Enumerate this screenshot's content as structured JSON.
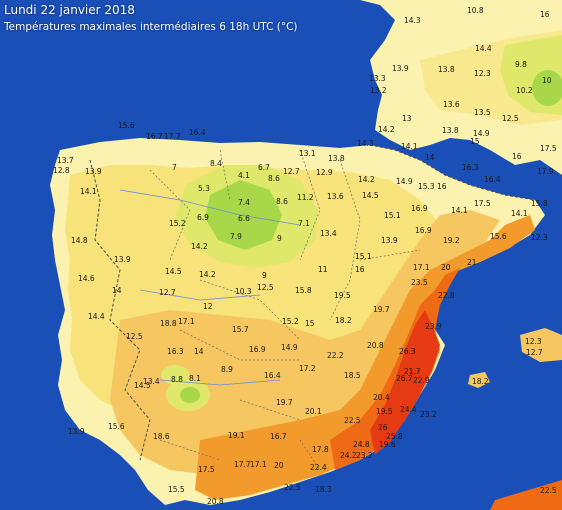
{
  "header": {
    "title": "Lundi 22 janvier 2018",
    "subtitle": "Températures maximales intermédiaires 6 18h UTC (°C)"
  },
  "colors": {
    "sea": "#1a4fb8",
    "yellow_pale": "#fbf2b0",
    "yellow": "#f8e27a",
    "light_orange": "#f6c760",
    "orange": "#f39a2c",
    "deep_orange": "#ee6a14",
    "red": "#e63a12",
    "lime": "#dfe86a",
    "green": "#a8d84a",
    "france_yellow": "#f9e98e"
  },
  "stations": [
    {
      "label": "10.8"
    },
    {
      "label": "16"
    },
    {
      "label": "14.3"
    },
    {
      "label": "14.4"
    },
    {
      "label": "9.8"
    },
    {
      "label": "13.3"
    },
    {
      "label": "13.9"
    },
    {
      "label": "13.8"
    },
    {
      "label": "12.3"
    },
    {
      "label": "10.2"
    },
    {
      "label": "13.2"
    },
    {
      "label": "10"
    },
    {
      "label": "13.6"
    },
    {
      "label": "13.5"
    },
    {
      "label": "13"
    },
    {
      "label": "12.5"
    },
    {
      "label": "15.6"
    },
    {
      "label": "14.2"
    },
    {
      "label": "13.8"
    },
    {
      "label": "14.9"
    },
    {
      "label": "15"
    },
    {
      "label": "16.7"
    },
    {
      "label": "17.7"
    },
    {
      "label": "16.4"
    },
    {
      "label": "14.3"
    },
    {
      "label": "14.1"
    },
    {
      "label": "14"
    },
    {
      "label": "16.3"
    },
    {
      "label": "16"
    },
    {
      "label": "17.5"
    },
    {
      "label": "13.7"
    },
    {
      "label": "7"
    },
    {
      "label": "8.4"
    },
    {
      "label": "6.7"
    },
    {
      "label": "12.7"
    },
    {
      "label": "13.1"
    },
    {
      "label": "13.8"
    },
    {
      "label": "14.2"
    },
    {
      "label": "14.9"
    },
    {
      "label": "15.3"
    },
    {
      "label": "16"
    },
    {
      "label": "16.4"
    },
    {
      "label": "17.9"
    },
    {
      "label": "12.8"
    },
    {
      "label": "13.9"
    },
    {
      "label": "4.1"
    },
    {
      "label": "8.6"
    },
    {
      "label": "12.9"
    },
    {
      "label": "16.9"
    },
    {
      "label": "14.1"
    },
    {
      "label": "17.5"
    },
    {
      "label": "14.1"
    },
    {
      "label": "5.3"
    },
    {
      "label": "7.4"
    },
    {
      "label": "8.6"
    },
    {
      "label": "11.2"
    },
    {
      "label": "13.6"
    },
    {
      "label": "14.5"
    },
    {
      "label": "15.1"
    },
    {
      "label": "14.1"
    },
    {
      "label": "15.8"
    },
    {
      "label": "6.9"
    },
    {
      "label": "6.6"
    },
    {
      "label": "7.1"
    },
    {
      "label": "14.8"
    },
    {
      "label": "15.2"
    },
    {
      "label": "13.4"
    },
    {
      "label": "16.9"
    },
    {
      "label": "19.2"
    },
    {
      "label": "15.6"
    },
    {
      "label": "14.2"
    },
    {
      "label": "7.9"
    },
    {
      "label": "9"
    },
    {
      "label": "13.9"
    },
    {
      "label": "12.3"
    },
    {
      "label": "21"
    },
    {
      "label": "13.9"
    },
    {
      "label": "14.5"
    },
    {
      "label": "14.2"
    },
    {
      "label": "9"
    },
    {
      "label": "11"
    },
    {
      "label": "15.1"
    },
    {
      "label": "16"
    },
    {
      "label": "17.1"
    },
    {
      "label": "20"
    },
    {
      "label": "14.6"
    },
    {
      "label": "14"
    },
    {
      "label": "12.7"
    },
    {
      "label": "10.3"
    },
    {
      "label": "12.5"
    },
    {
      "label": "15.8"
    },
    {
      "label": "19.5"
    },
    {
      "label": "23.5"
    },
    {
      "label": "22.8"
    },
    {
      "label": "14.4"
    },
    {
      "label": "18.8"
    },
    {
      "label": "17.1"
    },
    {
      "label": "12"
    },
    {
      "label": "15.7"
    },
    {
      "label": "15.2"
    },
    {
      "label": "15"
    },
    {
      "label": "18.2"
    },
    {
      "label": "19.7"
    },
    {
      "label": "23.9"
    },
    {
      "label": "20.8"
    },
    {
      "label": "12.5"
    },
    {
      "label": "16.3"
    },
    {
      "label": "14"
    },
    {
      "label": "16.9"
    },
    {
      "label": "14.9"
    },
    {
      "label": "26.3"
    },
    {
      "label": "22.2"
    },
    {
      "label": "13.4"
    },
    {
      "label": "8.8"
    },
    {
      "label": "8.1"
    },
    {
      "label": "8.9"
    },
    {
      "label": "16.4"
    },
    {
      "label": "17.2"
    },
    {
      "label": "18.5"
    },
    {
      "label": "21.7"
    },
    {
      "label": "26.7"
    },
    {
      "label": "22.9"
    },
    {
      "label": "18.2"
    },
    {
      "label": "12.3"
    },
    {
      "label": "13.9"
    },
    {
      "label": "15.6"
    },
    {
      "label": "14.5"
    },
    {
      "label": "19.7"
    },
    {
      "label": "20.1"
    },
    {
      "label": "20.4"
    },
    {
      "label": "24.4"
    },
    {
      "label": "23.2"
    },
    {
      "label": "19.5"
    },
    {
      "label": "22.5"
    },
    {
      "label": "26"
    },
    {
      "label": "25.8"
    },
    {
      "label": "18.6"
    },
    {
      "label": "19.1"
    },
    {
      "label": "16.7"
    },
    {
      "label": "17.8"
    },
    {
      "label": "24.8"
    },
    {
      "label": "19.6"
    },
    {
      "label": "24.2"
    },
    {
      "label": "23.2"
    },
    {
      "label": "17.7"
    },
    {
      "label": "17.1"
    },
    {
      "label": "22.4"
    },
    {
      "label": "20"
    },
    {
      "label": "18.3"
    },
    {
      "label": "17.5"
    },
    {
      "label": "15.5"
    },
    {
      "label": "20.8"
    },
    {
      "label": "22.5"
    },
    {
      "label": "22.5"
    },
    {
      "label": "12.7"
    }
  ]
}
